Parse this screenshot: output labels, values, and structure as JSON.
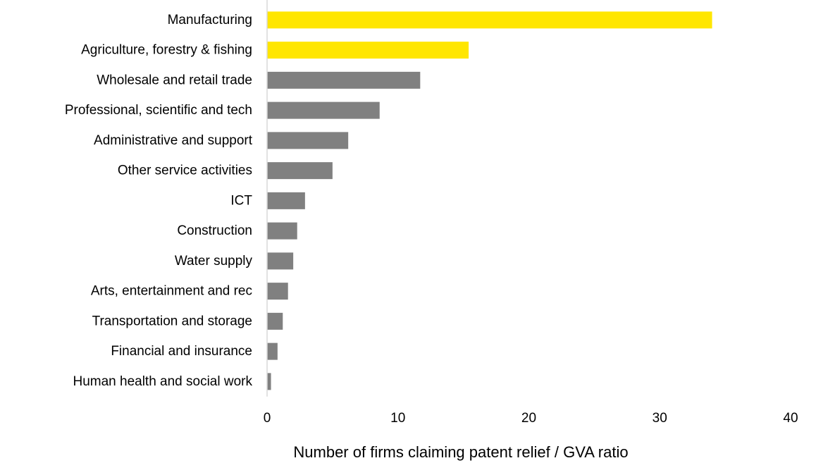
{
  "chart_data": {
    "type": "bar",
    "orientation": "horizontal",
    "categories": [
      "Manufacturing",
      "Agriculture, forestry & fishing",
      "Wholesale and retail trade",
      "Professional, scientific and tech",
      "Administrative and support",
      "Other service activities",
      "ICT",
      "Construction",
      "Water supply",
      "Arts, entertainment and rec",
      "Transportation and storage",
      "Financial and insurance",
      "Human health and social work"
    ],
    "values": [
      34.0,
      15.4,
      11.7,
      8.6,
      6.2,
      5.0,
      2.9,
      2.3,
      2.0,
      1.6,
      1.2,
      0.8,
      0.3
    ],
    "highlight": [
      true,
      true,
      false,
      false,
      false,
      false,
      false,
      false,
      false,
      false,
      false,
      false,
      false
    ],
    "colors": {
      "highlight": "#FFE600",
      "default": "#808080",
      "axis": "#D9D9D9"
    },
    "title": "",
    "xlabel": "Number of firms claiming patent relief / GVA ratio",
    "ylabel": "",
    "xlim": [
      0,
      40
    ],
    "xticks": [
      "0",
      "10",
      "20",
      "30",
      "40"
    ],
    "grid": false,
    "legend": "none"
  }
}
